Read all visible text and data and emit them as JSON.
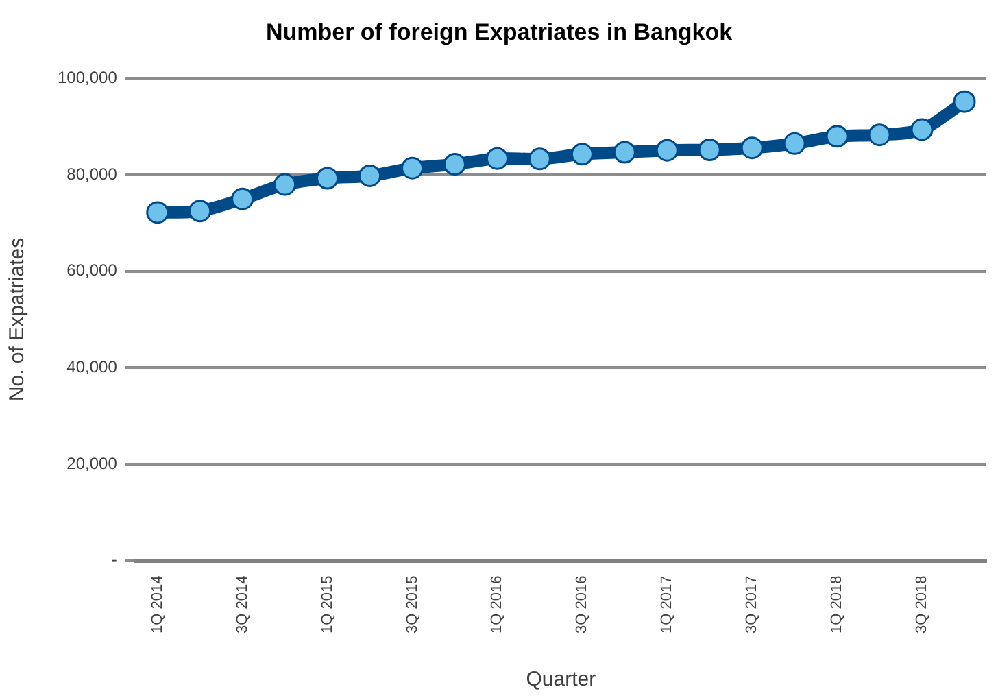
{
  "chart_data": {
    "type": "line",
    "title": "Number of foreign Expatriates in Bangkok",
    "xlabel": "Quarter",
    "ylabel": "No. of Expatriates",
    "categories": [
      "1Q 2014",
      null,
      "3Q 2014",
      null,
      "1Q 2015",
      null,
      "3Q 2015",
      null,
      "1Q 2016",
      null,
      "3Q 2016",
      null,
      "1Q 2017",
      null,
      "3Q 2017",
      null,
      "1Q 2018",
      null,
      "3Q 2018",
      null
    ],
    "series": [
      {
        "color": "#004a87",
        "values": [
          72200,
          72500,
          75000,
          78000,
          79300,
          79800,
          81400,
          82200,
          83400,
          83300,
          84300,
          84700,
          85100,
          85200,
          85600,
          86500,
          88000,
          88300,
          89400,
          95200
        ]
      }
    ],
    "ylim": [
      0,
      100000
    ],
    "yticks": [
      {
        "value": 0,
        "label": "-"
      },
      {
        "value": 20000,
        "label": "20,000"
      },
      {
        "value": 40000,
        "label": "40,000"
      },
      {
        "value": 60000,
        "label": "60,000"
      },
      {
        "value": 80000,
        "label": "80,000"
      },
      {
        "value": 100000,
        "label": "100,000"
      }
    ],
    "grid": "y",
    "legend": false,
    "marker": "circle",
    "line_style": "solid"
  }
}
